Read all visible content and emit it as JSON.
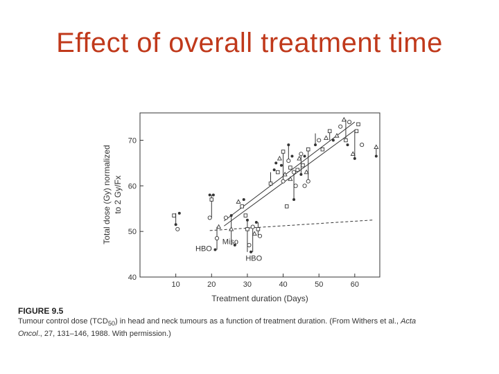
{
  "slide": {
    "title": "Effect of overall treatment time"
  },
  "caption": {
    "heading": "FIGURE 9.5",
    "line1_prefix": "Tumour control dose (TCD",
    "line1_sub": "50",
    "line1_mid": ") in head and neck tumours as a function of treatment duration. (From Withers et al., ",
    "line1_em": "Acta",
    "line2_em": "Oncol",
    "line2_rest": "., 27, 131–146, 1988. With permission.)"
  },
  "chart_data": {
    "type": "scatter",
    "xlabel": "Treatment duration (Days)",
    "ylabel_line1": "Total dose (Gy) normalized",
    "ylabel_line2": "to 2 Gy/Fx",
    "xlim": [
      0,
      67
    ],
    "ylim": [
      40,
      76
    ],
    "x_ticks": [
      10,
      20,
      30,
      40,
      50,
      60
    ],
    "y_ticks": [
      40,
      50,
      60,
      70
    ],
    "annotations": [
      {
        "text": "HBO",
        "x": 15.5,
        "y": 46.3
      },
      {
        "text": "Miso",
        "x": 23.0,
        "y": 47.8
      },
      {
        "text": "HBO",
        "x": 29.5,
        "y": 44.2
      }
    ],
    "lines": [
      {
        "x": [
          19.5,
          65
        ],
        "y": [
          50.2,
          52.5
        ],
        "style": "dashed"
      },
      {
        "x": [
          23.5,
          60
        ],
        "y": [
          51.2,
          72.2
        ],
        "style": "solid"
      },
      {
        "x": [
          23.5,
          60
        ],
        "y": [
          52.3,
          74.0
        ],
        "style": "solid"
      }
    ],
    "points": [
      {
        "x": 9.5,
        "y": 53.5,
        "m": "sq"
      },
      {
        "x": 10,
        "y": 51.5,
        "m": "dot"
      },
      {
        "x": 10.5,
        "y": 50.5,
        "m": "circ"
      },
      {
        "x": 11,
        "y": 54,
        "m": "dot"
      },
      {
        "x": 19.5,
        "y": 53,
        "m": "circ"
      },
      {
        "x": 19.5,
        "y": 58,
        "m": "dot"
      },
      {
        "x": 20,
        "y": 57,
        "m": "sq"
      },
      {
        "x": 20.5,
        "y": 58,
        "m": "dot"
      },
      {
        "x": 21,
        "y": 46,
        "m": "dot"
      },
      {
        "x": 21.5,
        "y": 48.5,
        "m": "circ"
      },
      {
        "x": 22,
        "y": 51,
        "m": "tri"
      },
      {
        "x": 24,
        "y": 53,
        "m": "circ"
      },
      {
        "x": 25.5,
        "y": 50.5,
        "m": "tri"
      },
      {
        "x": 25.5,
        "y": 53.5,
        "m": "dot"
      },
      {
        "x": 26.5,
        "y": 47,
        "m": "dot"
      },
      {
        "x": 27.5,
        "y": 56.5,
        "m": "tri"
      },
      {
        "x": 28.5,
        "y": 55.5,
        "m": "sq"
      },
      {
        "x": 29,
        "y": 57,
        "m": "dot"
      },
      {
        "x": 29.5,
        "y": 53.5,
        "m": "sq"
      },
      {
        "x": 30,
        "y": 50.5,
        "m": "sq"
      },
      {
        "x": 30,
        "y": 52.5,
        "m": "dot"
      },
      {
        "x": 30.5,
        "y": 47,
        "m": "circ"
      },
      {
        "x": 31,
        "y": 45.5,
        "m": "dot"
      },
      {
        "x": 31.5,
        "y": 51,
        "m": "circ"
      },
      {
        "x": 32,
        "y": 49.5,
        "m": "tri"
      },
      {
        "x": 32.5,
        "y": 52,
        "m": "dot"
      },
      {
        "x": 33,
        "y": 50.5,
        "m": "sq"
      },
      {
        "x": 33.5,
        "y": 49,
        "m": "circ"
      },
      {
        "x": 36.5,
        "y": 60.5,
        "m": "sq"
      },
      {
        "x": 37.5,
        "y": 63.5,
        "m": "dot"
      },
      {
        "x": 38,
        "y": 65,
        "m": "dot"
      },
      {
        "x": 38.5,
        "y": 63,
        "m": "sq"
      },
      {
        "x": 39,
        "y": 66,
        "m": "tri"
      },
      {
        "x": 39.5,
        "y": 64.5,
        "m": "dot"
      },
      {
        "x": 40,
        "y": 61,
        "m": "circ"
      },
      {
        "x": 40,
        "y": 67.5,
        "m": "sq"
      },
      {
        "x": 40.5,
        "y": 62.5,
        "m": "tri"
      },
      {
        "x": 41,
        "y": 55.5,
        "m": "sq"
      },
      {
        "x": 41.5,
        "y": 65.5,
        "m": "circ"
      },
      {
        "x": 41.5,
        "y": 69,
        "m": "dot"
      },
      {
        "x": 42,
        "y": 64,
        "m": "sq"
      },
      {
        "x": 42.5,
        "y": 66.5,
        "m": "dot"
      },
      {
        "x": 42,
        "y": 61.5,
        "m": "tri"
      },
      {
        "x": 43,
        "y": 63,
        "m": "circ"
      },
      {
        "x": 43,
        "y": 57,
        "m": "dot"
      },
      {
        "x": 43.5,
        "y": 60,
        "m": "circ"
      },
      {
        "x": 44,
        "y": 63.5,
        "m": "sq"
      },
      {
        "x": 44.5,
        "y": 66,
        "m": "tri"
      },
      {
        "x": 45,
        "y": 62.5,
        "m": "dot"
      },
      {
        "x": 45,
        "y": 67,
        "m": "circ"
      },
      {
        "x": 45.5,
        "y": 64.5,
        "m": "sq"
      },
      {
        "x": 46,
        "y": 60,
        "m": "circ"
      },
      {
        "x": 46,
        "y": 66.5,
        "m": "dot"
      },
      {
        "x": 46.5,
        "y": 63,
        "m": "tri"
      },
      {
        "x": 47,
        "y": 61,
        "m": "circ"
      },
      {
        "x": 47,
        "y": 68,
        "m": "sq"
      },
      {
        "x": 49,
        "y": 69,
        "m": "dot"
      },
      {
        "x": 50,
        "y": 70,
        "m": "circ"
      },
      {
        "x": 51,
        "y": 68,
        "m": "sq"
      },
      {
        "x": 52,
        "y": 70.5,
        "m": "tri"
      },
      {
        "x": 53,
        "y": 72,
        "m": "sq"
      },
      {
        "x": 54,
        "y": 70,
        "m": "dot"
      },
      {
        "x": 55,
        "y": 71,
        "m": "tri"
      },
      {
        "x": 56,
        "y": 73,
        "m": "circ"
      },
      {
        "x": 57,
        "y": 74.5,
        "m": "tri"
      },
      {
        "x": 57.5,
        "y": 70,
        "m": "sq"
      },
      {
        "x": 58,
        "y": 69,
        "m": "dot"
      },
      {
        "x": 58.5,
        "y": 74,
        "m": "circ"
      },
      {
        "x": 59.5,
        "y": 67,
        "m": "tri"
      },
      {
        "x": 60,
        "y": 66,
        "m": "dot"
      },
      {
        "x": 60.5,
        "y": 72,
        "m": "sq"
      },
      {
        "x": 61,
        "y": 73.5,
        "m": "sq"
      },
      {
        "x": 62,
        "y": 69,
        "m": "circ"
      },
      {
        "x": 66,
        "y": 68.5,
        "m": "tri"
      },
      {
        "x": 66,
        "y": 66.5,
        "m": "dot"
      }
    ],
    "errorbars": [
      {
        "x": 10,
        "y1": 51.5,
        "y2": 54
      },
      {
        "x": 20,
        "y1": 53,
        "y2": 58
      },
      {
        "x": 21.5,
        "y1": 46,
        "y2": 51
      },
      {
        "x": 25.5,
        "y1": 47,
        "y2": 53.5
      },
      {
        "x": 30,
        "y1": 45.5,
        "y2": 52.5
      },
      {
        "x": 31.5,
        "y1": 45.5,
        "y2": 51
      },
      {
        "x": 33,
        "y1": 49,
        "y2": 52
      },
      {
        "x": 36.5,
        "y1": 60.5,
        "y2": 63
      },
      {
        "x": 40,
        "y1": 61,
        "y2": 67.5
      },
      {
        "x": 41.5,
        "y1": 65.5,
        "y2": 69
      },
      {
        "x": 43,
        "y1": 57,
        "y2": 63
      },
      {
        "x": 45,
        "y1": 62.5,
        "y2": 67
      },
      {
        "x": 47,
        "y1": 61,
        "y2": 68
      },
      {
        "x": 49,
        "y1": 69,
        "y2": 71.5
      },
      {
        "x": 53,
        "y1": 70,
        "y2": 72
      },
      {
        "x": 57.5,
        "y1": 70,
        "y2": 74.5
      },
      {
        "x": 60,
        "y1": 66,
        "y2": 72
      },
      {
        "x": 66,
        "y1": 66.5,
        "y2": 68.5
      }
    ]
  }
}
